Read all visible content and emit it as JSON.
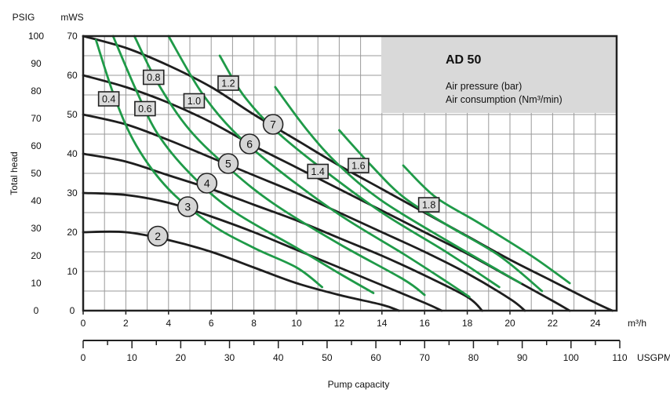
{
  "chart_data": {
    "type": "line",
    "title": "AD 50",
    "legend": {
      "line1": "Air pressure (bar)",
      "line2": "Air consumption (Nm³/min)",
      "placement": "top-right"
    },
    "unit_labels": {
      "psig": "PSIG",
      "mws": "mWS",
      "m3h": "m³/h",
      "usgpm": "USGPM"
    },
    "ylabel": "Total head",
    "xlabel": "Pump capacity",
    "x_ticks_m3h": [
      "0",
      "2",
      "4",
      "6",
      "8",
      "10",
      "12",
      "14",
      "16",
      "18",
      "20",
      "22",
      "24"
    ],
    "x_ticks_usgpm": [
      "0",
      "10",
      "20",
      "30",
      "40",
      "50",
      "60",
      "70",
      "80",
      "90",
      "100",
      "110"
    ],
    "y_ticks_mws": [
      "0",
      "10",
      "20",
      "30",
      "40",
      "50",
      "60",
      "70"
    ],
    "y_ticks_psig": [
      "0",
      "10",
      "20",
      "30",
      "40",
      "50",
      "60",
      "70",
      "80",
      "90",
      "100"
    ],
    "xlim": [
      0,
      25
    ],
    "ylim": [
      0,
      70
    ],
    "grid": true,
    "pressure_curves": [
      {
        "label": "2",
        "label_at": [
          3.5,
          19
        ],
        "points": [
          [
            0,
            20
          ],
          [
            2,
            20
          ],
          [
            4,
            18
          ],
          [
            6,
            15
          ],
          [
            8,
            11
          ],
          [
            10,
            7
          ],
          [
            12,
            4
          ],
          [
            14,
            1.5
          ],
          [
            14.8,
            0
          ]
        ]
      },
      {
        "label": "3",
        "label_at": [
          4.9,
          26.5
        ],
        "points": [
          [
            0,
            30
          ],
          [
            2,
            29.5
          ],
          [
            4,
            27.5
          ],
          [
            6,
            24
          ],
          [
            8,
            20
          ],
          [
            10,
            15.5
          ],
          [
            12,
            11
          ],
          [
            14,
            6.5
          ],
          [
            16,
            2
          ],
          [
            16.8,
            0
          ]
        ]
      },
      {
        "label": "4",
        "label_at": [
          5.8,
          32.5
        ],
        "points": [
          [
            0,
            40
          ],
          [
            2,
            38
          ],
          [
            4,
            34.5
          ],
          [
            6,
            31
          ],
          [
            8,
            27
          ],
          [
            10,
            23
          ],
          [
            12,
            18.5
          ],
          [
            14,
            14
          ],
          [
            16,
            9
          ],
          [
            18,
            3.5
          ],
          [
            18.7,
            0
          ]
        ]
      },
      {
        "label": "5",
        "label_at": [
          6.8,
          37.5
        ],
        "points": [
          [
            0,
            50
          ],
          [
            2,
            47.5
          ],
          [
            4,
            43.5
          ],
          [
            6,
            39
          ],
          [
            8,
            34.5
          ],
          [
            10,
            30
          ],
          [
            12,
            25
          ],
          [
            14,
            20
          ],
          [
            16,
            15
          ],
          [
            18,
            9.5
          ],
          [
            20,
            3
          ],
          [
            20.7,
            0
          ]
        ]
      },
      {
        "label": "6",
        "label_at": [
          7.8,
          42.5
        ],
        "points": [
          [
            0,
            60
          ],
          [
            2,
            57
          ],
          [
            4,
            53
          ],
          [
            6,
            48
          ],
          [
            8,
            42
          ],
          [
            10,
            36.5
          ],
          [
            12,
            31
          ],
          [
            14,
            25.5
          ],
          [
            16,
            20
          ],
          [
            18,
            14.5
          ],
          [
            20,
            8.5
          ],
          [
            22,
            2.5
          ],
          [
            22.8,
            0
          ]
        ]
      },
      {
        "label": "7",
        "label_at": [
          8.9,
          47.5
        ],
        "points": [
          [
            0,
            70
          ],
          [
            2,
            67
          ],
          [
            4,
            62.5
          ],
          [
            6,
            57
          ],
          [
            8,
            50
          ],
          [
            10,
            43.5
          ],
          [
            12,
            37
          ],
          [
            14,
            31
          ],
          [
            16,
            25
          ],
          [
            18,
            19
          ],
          [
            20,
            13
          ],
          [
            22,
            7.5
          ],
          [
            24,
            2
          ],
          [
            24.8,
            0
          ]
        ]
      }
    ],
    "air_consumption_curves": [
      {
        "label": "0.4",
        "label_at": [
          1.2,
          54
        ],
        "points": [
          [
            0.6,
            69
          ],
          [
            1.5,
            54
          ],
          [
            2.5,
            42
          ],
          [
            4,
            31
          ],
          [
            6,
            22
          ],
          [
            8,
            16
          ],
          [
            10,
            11
          ],
          [
            11.2,
            6
          ]
        ]
      },
      {
        "label": "0.6",
        "label_at": [
          2.9,
          51.5
        ],
        "points": [
          [
            1.4,
            70
          ],
          [
            2.5,
            56
          ],
          [
            3.5,
            45
          ],
          [
            5,
            35
          ],
          [
            7,
            25.5
          ],
          [
            10,
            16
          ],
          [
            12,
            9.5
          ],
          [
            13.6,
            4.5
          ]
        ]
      },
      {
        "label": "0.8",
        "label_at": [
          3.3,
          59.5
        ],
        "points": [
          [
            2.4,
            70
          ],
          [
            3.5,
            58
          ],
          [
            5,
            46
          ],
          [
            7,
            35.5
          ],
          [
            9,
            27
          ],
          [
            12,
            17
          ],
          [
            15,
            8
          ],
          [
            16,
            4
          ]
        ]
      },
      {
        "label": "1.0",
        "label_at": [
          5.2,
          53.5
        ],
        "points": [
          [
            4,
            70
          ],
          [
            5.5,
            56
          ],
          [
            7,
            46
          ],
          [
            9,
            36.5
          ],
          [
            12,
            24.5
          ],
          [
            15,
            14.5
          ],
          [
            17,
            7.5
          ],
          [
            18.1,
            3.5
          ]
        ]
      },
      {
        "label": "1.2",
        "label_at": [
          6.8,
          58
        ],
        "points": [
          [
            6.4,
            65
          ],
          [
            7.5,
            55
          ],
          [
            9,
            46
          ],
          [
            11,
            37
          ],
          [
            14,
            25
          ],
          [
            17,
            15
          ],
          [
            19.5,
            6
          ]
        ]
      },
      {
        "label": "1.4",
        "label_at": [
          11,
          35.5
        ],
        "points": [
          [
            9,
            57
          ],
          [
            10.5,
            46
          ],
          [
            12,
            37
          ],
          [
            14,
            28
          ],
          [
            17,
            18
          ],
          [
            20.5,
            7
          ]
        ]
      },
      {
        "label": "1.6",
        "label_at": [
          12.9,
          37
        ],
        "points": [
          [
            12,
            46
          ],
          [
            13.5,
            37
          ],
          [
            15,
            29
          ],
          [
            17,
            22
          ],
          [
            19.5,
            14
          ],
          [
            21.5,
            5
          ]
        ]
      },
      {
        "label": "1.8",
        "label_at": [
          16.2,
          27
        ],
        "points": [
          [
            15,
            37
          ],
          [
            16.5,
            29
          ],
          [
            18.5,
            22.5
          ],
          [
            21,
            14
          ],
          [
            22.8,
            7
          ]
        ]
      }
    ]
  }
}
